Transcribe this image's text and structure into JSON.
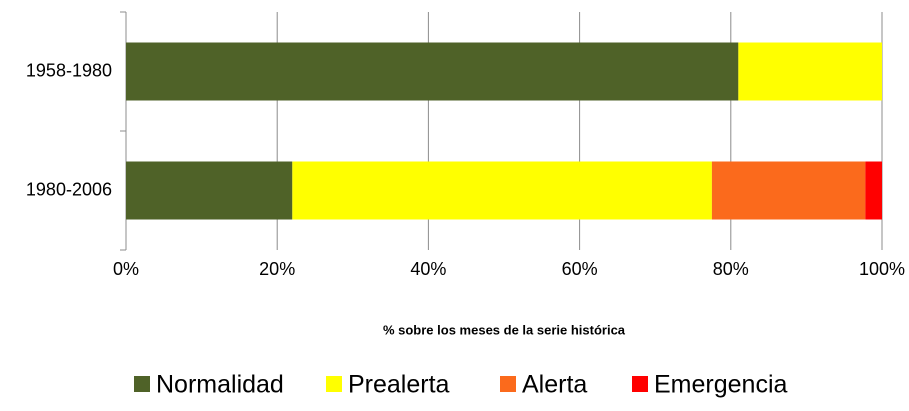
{
  "chart_data": {
    "type": "stacked_bar_horizontal",
    "x_label": "% sobre los meses de la serie histórica",
    "categories": [
      "1958-1980",
      "1980-2006"
    ],
    "series": [
      {
        "name": "Normalidad",
        "color": "#4f6228",
        "values": [
          81,
          22
        ]
      },
      {
        "name": "Prealerta",
        "color": "#ffff00",
        "values": [
          19,
          55.5
        ]
      },
      {
        "name": "Alerta",
        "color": "#fb6a1c",
        "values": [
          0,
          20.3
        ]
      },
      {
        "name": "Emergencia",
        "color": "#ff0000",
        "values": [
          0,
          2.2
        ]
      }
    ],
    "xlim": [
      0,
      100
    ],
    "xticks": [
      {
        "value": 0,
        "label": "0%"
      },
      {
        "value": 20,
        "label": "20%"
      },
      {
        "value": 40,
        "label": "40%"
      },
      {
        "value": 60,
        "label": "60%"
      },
      {
        "value": 80,
        "label": "80%"
      },
      {
        "value": 100,
        "label": "100%"
      }
    ],
    "grid": true,
    "legend": "bottom"
  }
}
